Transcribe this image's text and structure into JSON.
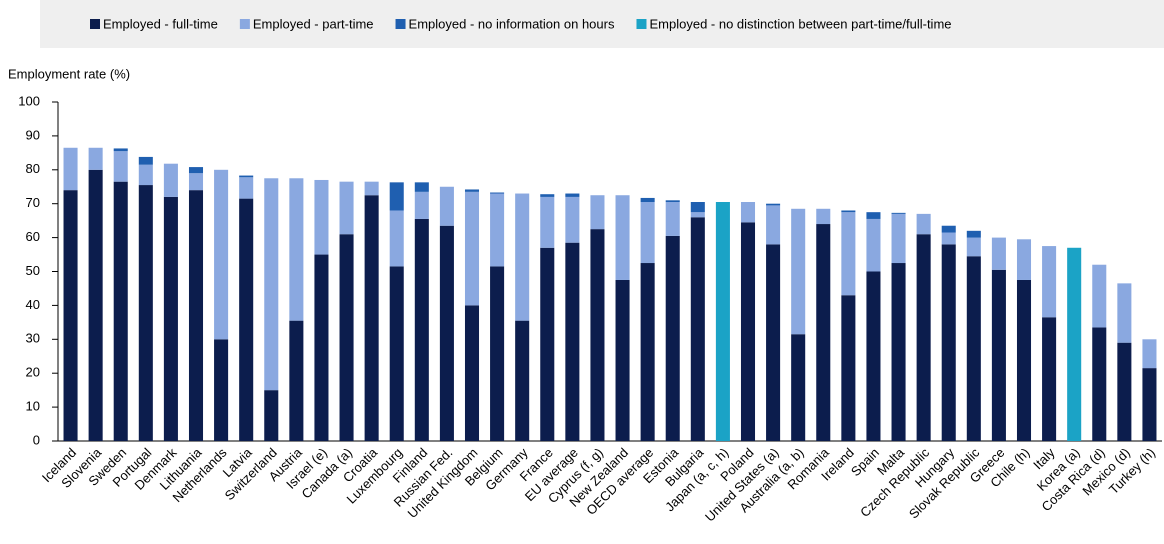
{
  "chart_data": {
    "type": "bar",
    "stacked": true,
    "y_label": "Employment rate (%)",
    "categories": [
      "Iceland",
      "Slovenia",
      "Sweden",
      "Portugal",
      "Denmark",
      "Lithuania",
      "Netherlands",
      "Latvia",
      "Switzerland",
      "Austria",
      "Israel (e)",
      "Canada (a)",
      "Croatia",
      "Luxembourg",
      "Finland",
      "Russian Fed.",
      "United Kingdom",
      "Belgium",
      "Germany",
      "France",
      "EU average",
      "Cyprus (f, g)",
      "New Zealand",
      "OECD average",
      "Estonia",
      "Bulgaria",
      "Japan (a, c, h)",
      "Poland",
      "United States (a)",
      "Australia (a, b)",
      "Romania",
      "Ireland",
      "Spain",
      "Malta",
      "Czech Republic",
      "Hungary",
      "Slovak Republic",
      "Greece",
      "Chile (h)",
      "Italy",
      "Korea (a)",
      "Costa Rica (d)",
      "Mexico (d)",
      "Turkey (h)"
    ],
    "series": [
      {
        "name": "Employed - full-time",
        "color": "#0c1d4d",
        "values": [
          74,
          80,
          76.5,
          75.5,
          72,
          74,
          30,
          71.5,
          15,
          35.5,
          55,
          61,
          72.5,
          51.5,
          65.5,
          63.5,
          40,
          51.5,
          35.5,
          57,
          58.5,
          62.5,
          47.5,
          52.5,
          60.5,
          66,
          null,
          64.5,
          58,
          31.5,
          64,
          43,
          50,
          52.5,
          61,
          58,
          54.5,
          50.5,
          47.5,
          36.5,
          null,
          33.5,
          29,
          21.5
        ]
      },
      {
        "name": "Employed - part-time",
        "color": "#8aa8e0",
        "values": [
          12.5,
          6.5,
          9,
          6,
          9.8,
          5,
          50,
          6.3,
          62.5,
          42,
          22,
          15.5,
          4,
          16.5,
          8,
          11.5,
          33.5,
          21.5,
          37.5,
          15,
          13.5,
          10,
          25,
          18,
          10,
          1.5,
          null,
          6,
          11.5,
          37,
          4.5,
          24.5,
          15.5,
          14.5,
          6,
          3.5,
          5.5,
          9.5,
          12,
          21,
          null,
          18.5,
          17.5,
          8.5
        ]
      },
      {
        "name": "Employed - no information on hours",
        "color": "#1f5fb0",
        "values": [
          0,
          0,
          0.8,
          2.3,
          0,
          1.8,
          0,
          0.5,
          0,
          0,
          0,
          0,
          0,
          8.3,
          2.8,
          0,
          0.7,
          0.3,
          0,
          0.8,
          1,
          0,
          0,
          1.2,
          0.5,
          3,
          null,
          0,
          0.5,
          0,
          0,
          0.5,
          2,
          0.3,
          0,
          2,
          2,
          0,
          0,
          0,
          null,
          0,
          0,
          0
        ]
      },
      {
        "name": "Employed - no distinction between part-time/full-time",
        "color": "#1ba3c6",
        "values": [
          null,
          null,
          null,
          null,
          null,
          null,
          null,
          null,
          null,
          null,
          null,
          null,
          null,
          null,
          null,
          null,
          null,
          null,
          null,
          null,
          null,
          null,
          null,
          null,
          null,
          null,
          70.5,
          null,
          null,
          null,
          null,
          null,
          null,
          null,
          null,
          null,
          null,
          null,
          null,
          null,
          57,
          null,
          null,
          null
        ]
      }
    ],
    "ylim": [
      0,
      100
    ],
    "yticks": [
      0,
      10,
      20,
      30,
      40,
      50,
      60,
      70,
      80,
      90,
      100
    ],
    "legend": "top"
  }
}
